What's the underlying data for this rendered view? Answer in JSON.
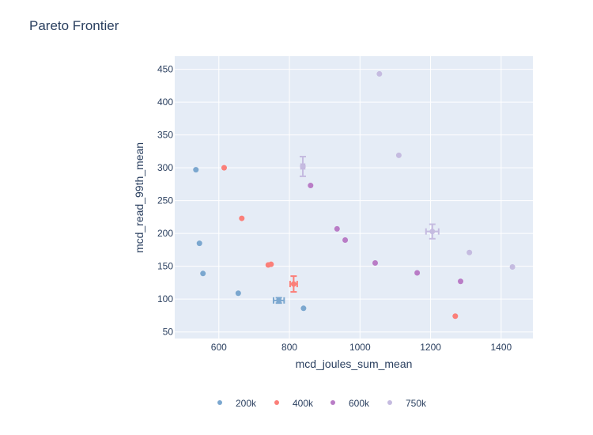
{
  "chart_data": {
    "type": "scatter",
    "title": "Pareto Frontier",
    "xlabel": "mcd_joules_sum_mean",
    "ylabel": "mcd_read_99th_mean",
    "xlim": [
      475,
      1490
    ],
    "ylim": [
      40,
      470
    ],
    "xticks": [
      600,
      800,
      1000,
      1200,
      1400
    ],
    "yticks": [
      50,
      100,
      150,
      200,
      250,
      300,
      350,
      400,
      450
    ],
    "grid": true,
    "legend_position": "bottom",
    "series": [
      {
        "name": "200k",
        "color": "#7ba7cf",
        "points": [
          {
            "x": 535,
            "y": 297
          },
          {
            "x": 545,
            "y": 185
          },
          {
            "x": 555,
            "y": 139
          },
          {
            "x": 655,
            "y": 109
          },
          {
            "x": 770,
            "y": 98,
            "xerr": 15,
            "yerr": 4
          },
          {
            "x": 840,
            "y": 86
          }
        ]
      },
      {
        "name": "400k",
        "color": "#fb7f79",
        "points": [
          {
            "x": 615,
            "y": 300
          },
          {
            "x": 665,
            "y": 223
          },
          {
            "x": 740,
            "y": 152
          },
          {
            "x": 748,
            "y": 153
          },
          {
            "x": 812,
            "y": 123,
            "xerr": 10,
            "yerr": 12
          },
          {
            "x": 1270,
            "y": 74
          }
        ]
      },
      {
        "name": "600k",
        "color": "#b97cc6",
        "points": [
          {
            "x": 838,
            "y": 302
          },
          {
            "x": 860,
            "y": 273
          },
          {
            "x": 935,
            "y": 207
          },
          {
            "x": 958,
            "y": 190
          },
          {
            "x": 1043,
            "y": 155
          },
          {
            "x": 1162,
            "y": 140
          },
          {
            "x": 1285,
            "y": 127
          }
        ]
      },
      {
        "name": "750k",
        "color": "#c5bbe0",
        "points": [
          {
            "x": 838,
            "y": 302,
            "xerr": 5,
            "yerr": 15
          },
          {
            "x": 1055,
            "y": 443
          },
          {
            "x": 1110,
            "y": 319
          },
          {
            "x": 1205,
            "y": 203,
            "xerr": 18,
            "yerr": 11
          },
          {
            "x": 1310,
            "y": 171
          },
          {
            "x": 1432,
            "y": 149
          }
        ]
      }
    ]
  }
}
